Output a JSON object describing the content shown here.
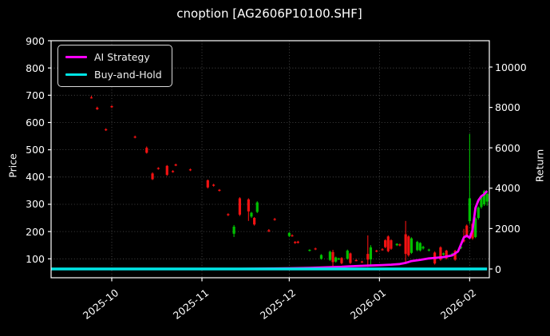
{
  "window": {
    "background": "#000000",
    "text_color": "#ffffff"
  },
  "chart_data": {
    "type": "candlestick+line",
    "title": "cnoption [AG2606P10100.SHF]",
    "ylabel_left": "Price",
    "ylabel_right": "Return",
    "grid": "dotted",
    "legend_position": "upper-left",
    "legend": [
      {
        "label": "AI Strategy",
        "color": "#ff00ff"
      },
      {
        "label": "Buy-and-Hold",
        "color": "#00e5e5"
      }
    ],
    "colors": {
      "background": "#000000",
      "frame": "#ffffff",
      "text": "#ffffff",
      "grid": "#9a9a9a",
      "up": "#00bf00",
      "down": "#f21212",
      "strategy": "#ff00ff",
      "buy_hold": "#00e5e5"
    },
    "price_axis": {
      "ticks": [
        900,
        800,
        700,
        600,
        500,
        400,
        300,
        200,
        100
      ],
      "min_visible": 30,
      "max_visible": 900
    },
    "return_axis": {
      "ticks": [
        10000,
        8000,
        6000,
        4000,
        2000,
        0
      ]
    },
    "x_axis": {
      "ticks": [
        "2025-10",
        "2025-11",
        "2025-12",
        "2026-01",
        "2026-02"
      ]
    },
    "candles": [
      [
        "2025-09-24",
        692,
        698,
        688,
        690
      ],
      [
        "2025-09-26",
        654,
        658,
        646,
        649
      ],
      [
        "2025-09-29",
        575,
        579,
        569,
        572
      ],
      [
        "2025-10-01",
        660,
        663,
        653,
        656
      ],
      [
        "2025-10-09",
        548,
        552,
        542,
        545
      ],
      [
        "2025-10-13",
        507,
        512,
        486,
        489
      ],
      [
        "2025-10-15",
        413,
        417,
        389,
        392
      ],
      [
        "2025-10-17",
        433,
        436,
        427,
        430
      ],
      [
        "2025-10-20",
        441,
        444,
        404,
        408
      ],
      [
        "2025-10-22",
        422,
        425,
        416,
        418
      ],
      [
        "2025-10-23",
        446,
        449,
        440,
        442
      ],
      [
        "2025-10-28",
        428,
        431,
        422,
        425
      ],
      [
        "2025-11-03",
        388,
        391,
        358,
        362
      ],
      [
        "2025-11-05",
        372,
        375,
        365,
        368
      ],
      [
        "2025-11-07",
        353,
        356,
        347,
        350
      ],
      [
        "2025-11-10",
        264,
        267,
        257,
        260
      ],
      [
        "2025-11-12",
        192,
        224,
        180,
        218
      ],
      [
        "2025-11-14",
        322,
        326,
        257,
        262
      ],
      [
        "2025-11-17",
        318,
        322,
        239,
        274
      ],
      [
        "2025-11-18",
        255,
        272,
        250,
        269
      ],
      [
        "2025-11-19",
        250,
        253,
        222,
        226
      ],
      [
        "2025-11-20",
        272,
        311,
        268,
        307
      ],
      [
        "2025-11-24",
        205,
        209,
        198,
        201
      ],
      [
        "2025-11-26",
        246,
        250,
        240,
        243
      ],
      [
        "2025-12-01",
        184,
        198,
        180,
        195
      ],
      [
        "2025-12-02",
        186,
        190,
        181,
        184
      ],
      [
        "2025-12-03",
        162,
        165,
        155,
        158
      ],
      [
        "2025-12-04",
        163,
        166,
        156,
        159
      ],
      [
        "2025-12-08",
        130,
        135,
        127,
        133
      ],
      [
        "2025-12-10",
        138,
        141,
        132,
        135
      ],
      [
        "2025-12-12",
        100,
        117,
        97,
        114
      ],
      [
        "2025-12-15",
        96,
        130,
        92,
        126
      ],
      [
        "2025-12-16",
        125,
        133,
        68,
        88
      ],
      [
        "2025-12-17",
        90,
        108,
        86,
        105
      ],
      [
        "2025-12-18",
        100,
        104,
        96,
        101
      ],
      [
        "2025-12-19",
        103,
        106,
        80,
        84
      ],
      [
        "2025-12-21",
        100,
        134,
        97,
        130
      ],
      [
        "2025-12-22",
        120,
        123,
        81,
        85
      ],
      [
        "2025-12-24",
        95,
        99,
        91,
        94
      ],
      [
        "2025-12-26",
        90,
        93,
        85,
        88
      ],
      [
        "2025-12-28",
        118,
        186,
        70,
        97
      ],
      [
        "2025-12-29",
        98,
        150,
        79,
        142
      ],
      [
        "2025-12-31",
        130,
        133,
        124,
        127
      ],
      [
        "2026-01-02",
        135,
        139,
        130,
        133
      ],
      [
        "2026-01-03",
        168,
        172,
        139,
        143
      ],
      [
        "2026-01-04",
        182,
        186,
        124,
        128
      ],
      [
        "2026-01-05",
        168,
        172,
        133,
        137
      ],
      [
        "2026-01-07",
        150,
        157,
        147,
        155
      ],
      [
        "2026-01-08",
        153,
        156,
        146,
        149
      ],
      [
        "2026-01-10",
        190,
        239,
        88,
        118
      ],
      [
        "2026-01-11",
        182,
        186,
        108,
        113
      ],
      [
        "2026-01-12",
        122,
        179,
        118,
        175
      ],
      [
        "2026-01-14",
        132,
        166,
        128,
        162
      ],
      [
        "2026-01-15",
        131,
        161,
        127,
        158
      ],
      [
        "2026-01-16",
        138,
        148,
        134,
        144
      ],
      [
        "2026-01-18",
        131,
        137,
        127,
        134
      ],
      [
        "2026-01-20",
        123,
        127,
        79,
        83
      ],
      [
        "2026-01-22",
        142,
        146,
        93,
        97
      ],
      [
        "2026-01-23",
        116,
        123,
        112,
        120
      ],
      [
        "2026-01-24",
        130,
        133,
        98,
        102
      ],
      [
        "2026-01-26",
        117,
        122,
        113,
        119
      ],
      [
        "2026-01-27",
        129,
        133,
        93,
        97
      ],
      [
        "2026-01-29",
        140,
        147,
        136,
        144
      ],
      [
        "2026-01-30",
        170,
        210,
        160,
        164
      ],
      [
        "2026-01-31",
        222,
        226,
        178,
        182
      ],
      [
        "2026-02-01",
        238,
        558,
        228,
        322
      ],
      [
        "2026-02-02",
        228,
        232,
        170,
        175
      ],
      [
        "2026-02-03",
        180,
        252,
        176,
        248
      ],
      [
        "2026-02-04",
        250,
        292,
        244,
        288
      ],
      [
        "2026-02-05",
        290,
        332,
        284,
        328
      ],
      [
        "2026-02-06",
        300,
        352,
        294,
        348
      ],
      [
        "2026-02-07",
        310,
        345,
        295,
        338
      ]
    ],
    "series": [
      {
        "name": "AI Strategy",
        "axis": "return",
        "points": [
          [
            "2025-09-10",
            0
          ],
          [
            "2025-11-01",
            0
          ],
          [
            "2025-11-14",
            5
          ],
          [
            "2025-11-20",
            15
          ],
          [
            "2025-12-01",
            35
          ],
          [
            "2025-12-08",
            55
          ],
          [
            "2025-12-15",
            85
          ],
          [
            "2025-12-19",
            105
          ],
          [
            "2025-12-22",
            135
          ],
          [
            "2025-12-28",
            165
          ],
          [
            "2026-01-02",
            195
          ],
          [
            "2026-01-05",
            215
          ],
          [
            "2026-01-08",
            245
          ],
          [
            "2026-01-10",
            300
          ],
          [
            "2026-01-12",
            390
          ],
          [
            "2026-01-15",
            450
          ],
          [
            "2026-01-18",
            520
          ],
          [
            "2026-01-20",
            550
          ],
          [
            "2026-01-23",
            590
          ],
          [
            "2026-01-26",
            670
          ],
          [
            "2026-01-28",
            870
          ],
          [
            "2026-01-29",
            1210
          ],
          [
            "2026-01-30",
            1560
          ],
          [
            "2026-01-31",
            1650
          ],
          [
            "2026-02-01",
            1540
          ],
          [
            "2026-02-02",
            1930
          ],
          [
            "2026-02-03",
            3020
          ],
          [
            "2026-02-04",
            3400
          ],
          [
            "2026-02-05",
            3600
          ],
          [
            "2026-02-06",
            3700
          ],
          [
            "2026-02-07",
            3870
          ]
        ]
      },
      {
        "name": "Buy-and-Hold",
        "axis": "return",
        "points": [
          [
            "2025-09-10",
            0
          ],
          [
            "2026-02-07",
            0
          ]
        ]
      }
    ]
  }
}
